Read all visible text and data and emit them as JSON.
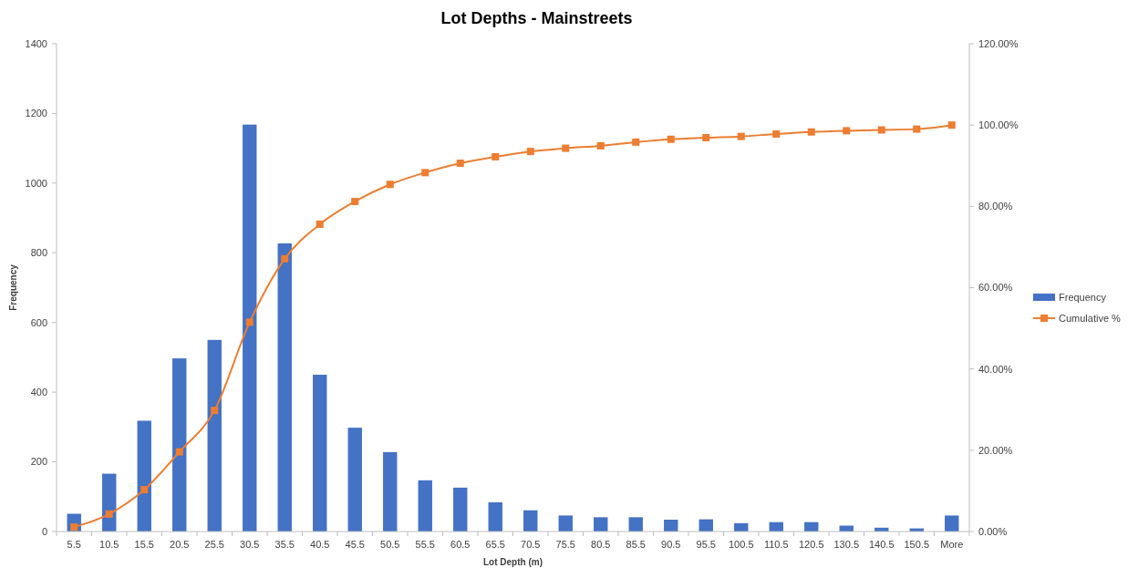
{
  "chart_data": {
    "type": "bar",
    "title": "Lot Depths - Mainstreets",
    "xlabel": "Lot Depth (m)",
    "ylabel": "Frequency",
    "categories": [
      "5.5",
      "10.5",
      "15.5",
      "20.5",
      "25.5",
      "30.5",
      "35.5",
      "40.5",
      "45.5",
      "50.5",
      "55.5",
      "60.5",
      "65.5",
      "70.5",
      "75.5",
      "80.5",
      "85.5",
      "90.5",
      "95.5",
      "100.5",
      "110.5",
      "120.5",
      "130.5",
      "140.5",
      "150.5",
      "More"
    ],
    "series": [
      {
        "name": "Frequency",
        "color": "#4472c4",
        "values": [
          51,
          166,
          318,
          497,
          550,
          1168,
          827,
          450,
          298,
          228,
          147,
          126,
          84,
          61,
          46,
          41,
          41,
          34,
          35,
          24,
          27,
          27,
          17,
          11,
          9,
          46
        ]
      },
      {
        "name": "Cumulative %",
        "type": "line",
        "axis": "y2",
        "color": "#ed7d31",
        "values": [
          1.1,
          4.3,
          10.3,
          19.6,
          29.8,
          51.5,
          67.1,
          75.6,
          81.2,
          85.4,
          88.3,
          90.6,
          92.2,
          93.5,
          94.3,
          94.9,
          95.8,
          96.5,
          96.9,
          97.2,
          97.8,
          98.3,
          98.6,
          98.8,
          99.0,
          100
        ]
      }
    ],
    "ylim": [
      0,
      1400
    ],
    "yticks": [
      0,
      200,
      400,
      600,
      800,
      1000,
      1200,
      1400
    ],
    "y2lim": [
      0,
      120
    ],
    "y2ticks": [
      {
        "value": 0,
        "label": "0.00%"
      },
      {
        "value": 20,
        "label": "20.00%"
      },
      {
        "value": 40,
        "label": "40.00%"
      },
      {
        "value": 60,
        "label": "60.00%"
      },
      {
        "value": 80,
        "label": "80.00%"
      },
      {
        "value": 100,
        "label": "100.00%"
      },
      {
        "value": 120,
        "label": "120.00%"
      }
    ],
    "legend": "right",
    "marker": "square",
    "grid": false
  }
}
